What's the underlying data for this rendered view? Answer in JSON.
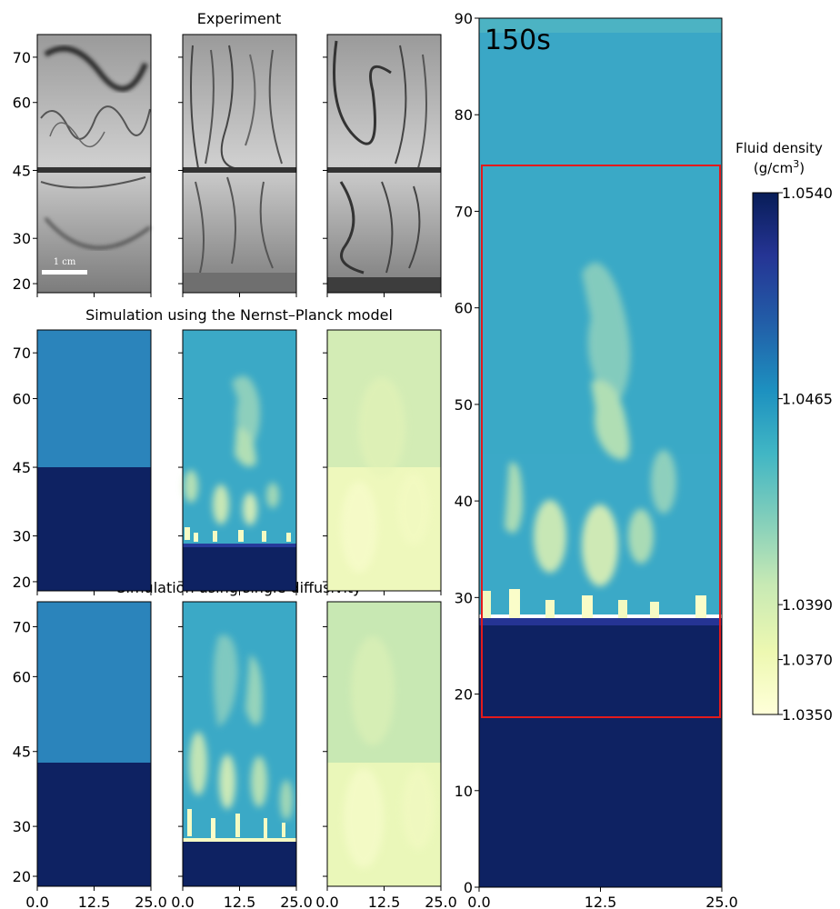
{
  "chart_data": {
    "type": "heatmap",
    "rows": [
      {
        "title": "Experiment",
        "kind": "photo",
        "yticks": [
          "20",
          "30",
          "45",
          "60",
          "70"
        ],
        "scalebar": "1 cm"
      },
      {
        "title": "Simulation using the Nernst–Planck model",
        "kind": "simulation",
        "yticks": [
          "20",
          "30",
          "45",
          "60",
          "70"
        ]
      },
      {
        "title": "Simulation using single diffusivity",
        "kind": "simulation",
        "yticks": [
          "20",
          "30",
          "45",
          "60",
          "70"
        ]
      }
    ],
    "small_panel_xticks": [
      "0.0",
      "12.5",
      "25.0"
    ],
    "small_panel_xlim": [
      0,
      25
    ],
    "small_panel_ylim": [
      18,
      75
    ],
    "small_panel_interface_depth": 45,
    "large_panel": {
      "time_label": "150s",
      "xlim": [
        0,
        25
      ],
      "ylim": [
        0,
        90
      ],
      "xticks": [
        "0.0",
        "12.5",
        "25.0"
      ],
      "yticks": [
        "0",
        "10",
        "20",
        "30",
        "40",
        "50",
        "60",
        "70",
        "80",
        "90"
      ],
      "interface_depth": 45,
      "front_depth": 27,
      "highlight_box": {
        "x": [
          0,
          25
        ],
        "y": [
          17.5,
          75
        ],
        "color": "#e31a1c"
      }
    },
    "colorbar": {
      "label": "Fluid density",
      "unit_prefix": "(g/cm",
      "unit_sup": "3",
      "unit_suffix": ")",
      "ticks": [
        "1.0540",
        "1.0465",
        "1.0390",
        "1.0370",
        "1.0350"
      ],
      "tick_values": [
        1.054,
        1.0465,
        1.039,
        1.037,
        1.035
      ],
      "colormap": "YlGnBu",
      "range": [
        1.035,
        1.054
      ]
    }
  }
}
